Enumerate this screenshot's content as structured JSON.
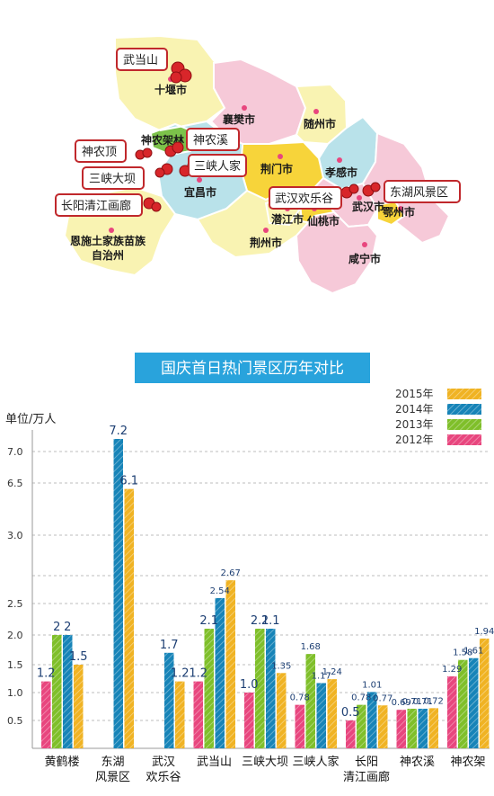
{
  "map": {
    "cities": [
      "十堰市",
      "襄樊市",
      "随州市",
      "神农架林",
      "荆门市",
      "孝感市",
      "宜昌市",
      "潜江市",
      "仙桃市",
      "武汉市",
      "鄂州市",
      "恩施土家族苗族\n自治州",
      "荆州市",
      "咸宁市"
    ],
    "callouts": [
      "武当山",
      "神农溪",
      "神农顶",
      "三峡人家",
      "三峡大坝",
      "长阳清江画廊",
      "武汉欢乐谷",
      "东湖风景区"
    ]
  },
  "chart_data": {
    "type": "bar",
    "title": "国庆首日热门景区历年对比",
    "ylabel": "单位/万人",
    "yticks": [
      "0.5",
      "1.0",
      "1.5",
      "2.0",
      "2.5",
      "3.0",
      "6.5",
      "7.0"
    ],
    "categories": [
      "黄鹤楼",
      "东湖\n风景区",
      "武汉\n欢乐谷",
      "武当山",
      "三峡大坝",
      "三峡人家",
      "长阳\n清江画廊",
      "神农溪",
      "神农架"
    ],
    "series": [
      {
        "name": "2012年",
        "color": "#e8467e",
        "values": [
          1.2,
          null,
          null,
          1.2,
          1.0,
          0.78,
          0.5,
          0.69,
          1.29
        ],
        "labels": [
          "1.2",
          "",
          "",
          "1.2",
          "1.0",
          "0.78",
          "0.5",
          "0.69",
          "1.29"
        ]
      },
      {
        "name": "2013年",
        "color": "#7fbf2a",
        "values": [
          2.0,
          null,
          null,
          2.1,
          2.1,
          1.68,
          0.78,
          0.71,
          1.58
        ],
        "labels": [
          "2",
          "",
          "",
          "2.1",
          "2.1",
          "1.68",
          "0.78",
          "0.71",
          "1.58"
        ]
      },
      {
        "name": "2014年",
        "color": "#1784b8",
        "values": [
          2.0,
          7.2,
          1.7,
          2.54,
          2.1,
          1.17,
          1.01,
          0.71,
          1.61
        ],
        "labels": [
          "2",
          "7.2",
          "1.7",
          "2.54",
          "2.1",
          "1.17",
          "1.01",
          "0.71",
          "1.61"
        ]
      },
      {
        "name": "2015年",
        "color": "#f0b323",
        "values": [
          1.5,
          6.1,
          1.2,
          2.67,
          1.35,
          1.24,
          0.77,
          0.72,
          1.94
        ],
        "labels": [
          "1.5",
          "6.1",
          "1.2",
          "2.67",
          "1.35",
          "1.24",
          "0.77",
          "0.72",
          "1.94"
        ]
      }
    ]
  }
}
